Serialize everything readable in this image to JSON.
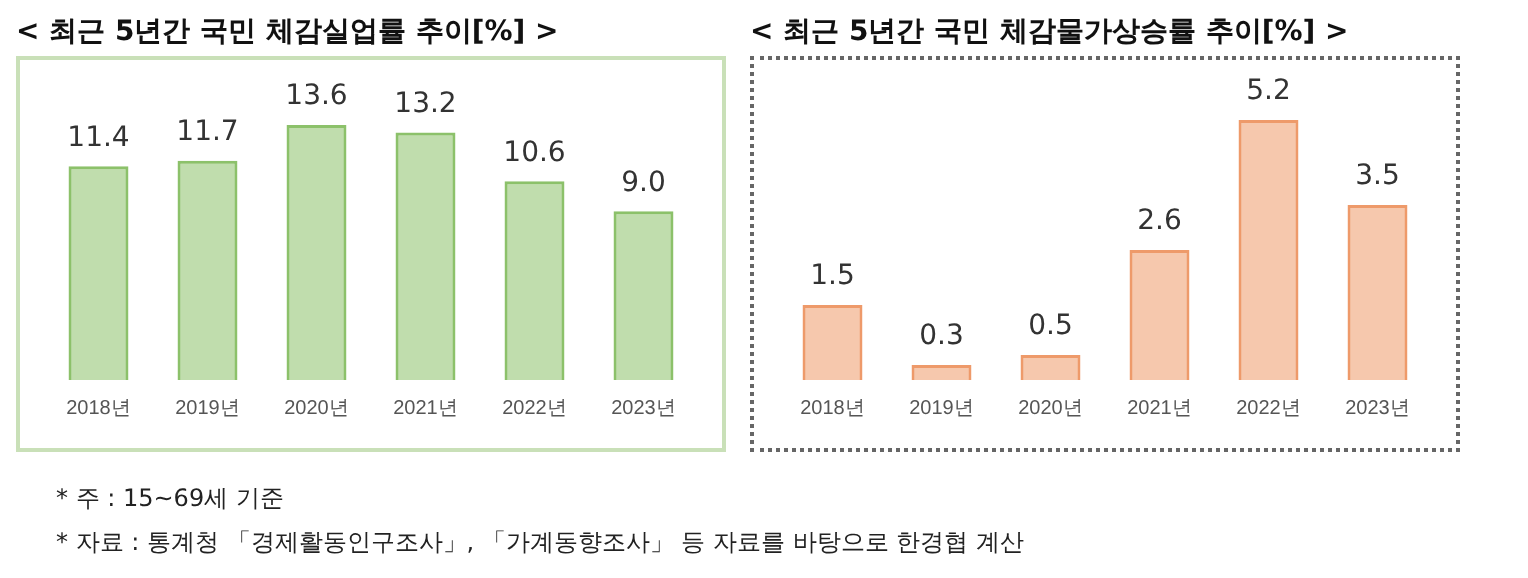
{
  "chart_data": [
    {
      "type": "bar",
      "title": "< 최근 5년간 국민 체감실업률 추이[%] >",
      "categories": [
        "2018년",
        "2019년",
        "2020년",
        "2021년",
        "2022년",
        "2023년"
      ],
      "values": [
        11.4,
        11.7,
        13.6,
        13.2,
        10.6,
        9.0
      ],
      "value_labels": [
        "11.4",
        "11.7",
        "13.6",
        "13.2",
        "10.6",
        "9.0"
      ],
      "color": "#8cc16a",
      "tick_labels": "x",
      "grid": false,
      "annotations": [
        "* 주 : 15~69세 기준",
        "* 자료 : 통계청 「경제활동인구조사」, 「가계동향조사」 등 자료를 바탕으로 한경협 계산"
      ]
    },
    {
      "type": "bar",
      "title": "< 최근 5년간 국민 체감물가상승률 추이[%] >",
      "categories": [
        "2018년",
        "2019년",
        "2020년",
        "2021년",
        "2022년",
        "2023년"
      ],
      "values": [
        1.5,
        0.3,
        0.5,
        2.6,
        5.2,
        3.5
      ],
      "data_labels": true,
      "color": "#ee9a6a",
      "tick_labels": "x",
      "grid": false
    }
  ]
}
